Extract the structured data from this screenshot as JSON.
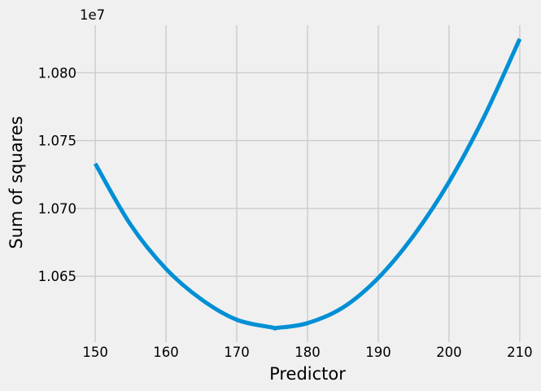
{
  "chart_data": {
    "type": "line",
    "style": "fivethirtyeight",
    "xlabel": "Predictor",
    "ylabel": "Sum of squares",
    "y_offset_text": "1e7",
    "xlim": [
      147.0,
      213.0
    ],
    "ylim": [
      10601500,
      10835000
    ],
    "x_ticks": [
      150,
      160,
      170,
      180,
      190,
      200,
      210
    ],
    "x_tick_labels": [
      "150",
      "160",
      "170",
      "180",
      "190",
      "200",
      "210"
    ],
    "y_ticks": [
      10650000,
      10700000,
      10750000,
      10800000
    ],
    "y_tick_labels": [
      "1.065",
      "1.070",
      "1.075",
      "1.080"
    ],
    "grid": true,
    "series": [
      {
        "color": "#008fd5",
        "x": [
          150,
          155,
          160,
          165,
          170,
          175,
          175.7,
          180,
          185,
          190,
          195,
          200,
          205,
          210
        ],
        "y": [
          10733000,
          10688000,
          10655500,
          10633000,
          10618000,
          10612300,
          10612000,
          10615500,
          10627000,
          10648800,
          10680000,
          10719500,
          10768000,
          10825000
        ]
      }
    ],
    "colors": {
      "background": "#f0f0f0",
      "grid": "#cbcbcb",
      "line": "#008fd5"
    }
  }
}
